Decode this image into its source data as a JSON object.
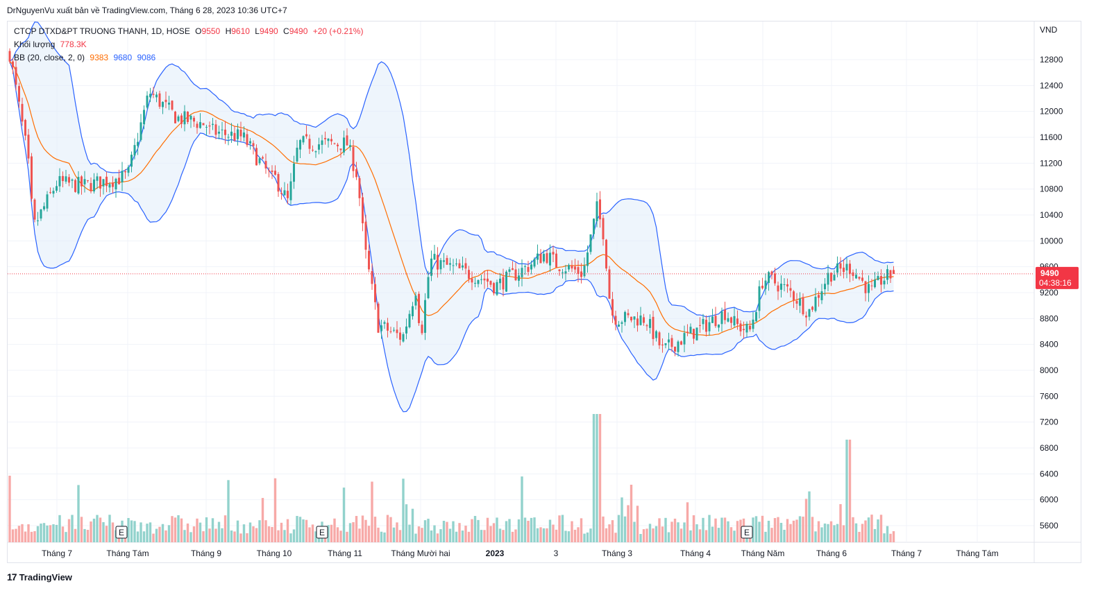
{
  "header": {
    "publish_line": "DrNguyenVu xuất bản về TradingView.com, Tháng 6 28, 2023 10:36 UTC+7"
  },
  "legend": {
    "symbol": "CTCP DTXD&PT TRUONG THANH, 1D, HOSE",
    "o_label": "O",
    "o_value": "9550",
    "h_label": "H",
    "h_value": "9610",
    "l_label": "L",
    "l_value": "9490",
    "c_label": "C",
    "c_value": "9490",
    "change": "+20 (+0.21%)",
    "volume_label": "Khối lượng",
    "volume_value": "778.3K",
    "bb_label": "BB (20, close, 2, 0)",
    "bb_basis": "9383",
    "bb_upper": "9680",
    "bb_lower": "9086"
  },
  "price_axis": {
    "currency": "VND",
    "ticks": [
      "12800",
      "12400",
      "12000",
      "11600",
      "11200",
      "10800",
      "10400",
      "10000",
      "9600",
      "9200",
      "8800",
      "8400",
      "8000",
      "7600",
      "7200",
      "6800",
      "6400",
      "6000",
      "5600"
    ]
  },
  "price_badge": {
    "price": "9490",
    "countdown": "04:38:16"
  },
  "time_axis": {
    "labels": [
      "Tháng 7",
      "Tháng Tám",
      "Tháng 9",
      "Tháng 10",
      "Tháng 11",
      "Tháng Mười hai",
      "2023",
      "3",
      "Tháng 3",
      "Tháng 4",
      "Tháng Năm",
      "Tháng 6",
      "Tháng 7",
      "Tháng Tám"
    ]
  },
  "earnings_markers": [
    "E",
    "E",
    "E"
  ],
  "footer": {
    "brand": "TradingView",
    "logo": "17"
  },
  "colors": {
    "up": "#26a69a",
    "down": "#ef5350",
    "vol_up": "#92d2cc",
    "vol_down": "#f7a9a7",
    "bb_band": "#2962ff",
    "bb_basis": "#ff6d00",
    "bb_fill": "#e3effa",
    "last_price": "#f23645"
  },
  "chart_data": {
    "type": "candlestick",
    "title": "CTCP DTXD&PT TRUONG THANH, 1D, HOSE",
    "ylabel": "VND",
    "ylim": [
      5200,
      13400
    ],
    "interval": "1D",
    "last_close": 9490,
    "anchors": [
      {
        "x": "Tháng 7",
        "close": 10900
      },
      {
        "x": "Tháng Tám",
        "close": 11000
      },
      {
        "x": "Tháng 9",
        "close": 11800
      },
      {
        "x": "Tháng 10",
        "close": 10900
      },
      {
        "x": "Tháng 11",
        "close": 11500
      },
      {
        "x": "Tháng Mười hai",
        "close": 8500
      },
      {
        "x": "2023",
        "close": 9300
      },
      {
        "x": "3",
        "close": 9650
      },
      {
        "x": "Tháng 3",
        "close": 8800
      },
      {
        "x": "Tháng 4",
        "close": 8600
      },
      {
        "x": "Tháng Năm",
        "close": 9400
      },
      {
        "x": "Tháng 6",
        "close": 9500
      }
    ],
    "bollinger": {
      "length": 20,
      "source": "close",
      "mult": 2,
      "basis": 9383,
      "upper": 9680,
      "lower": 9086
    },
    "volume_last": "778.3K"
  }
}
